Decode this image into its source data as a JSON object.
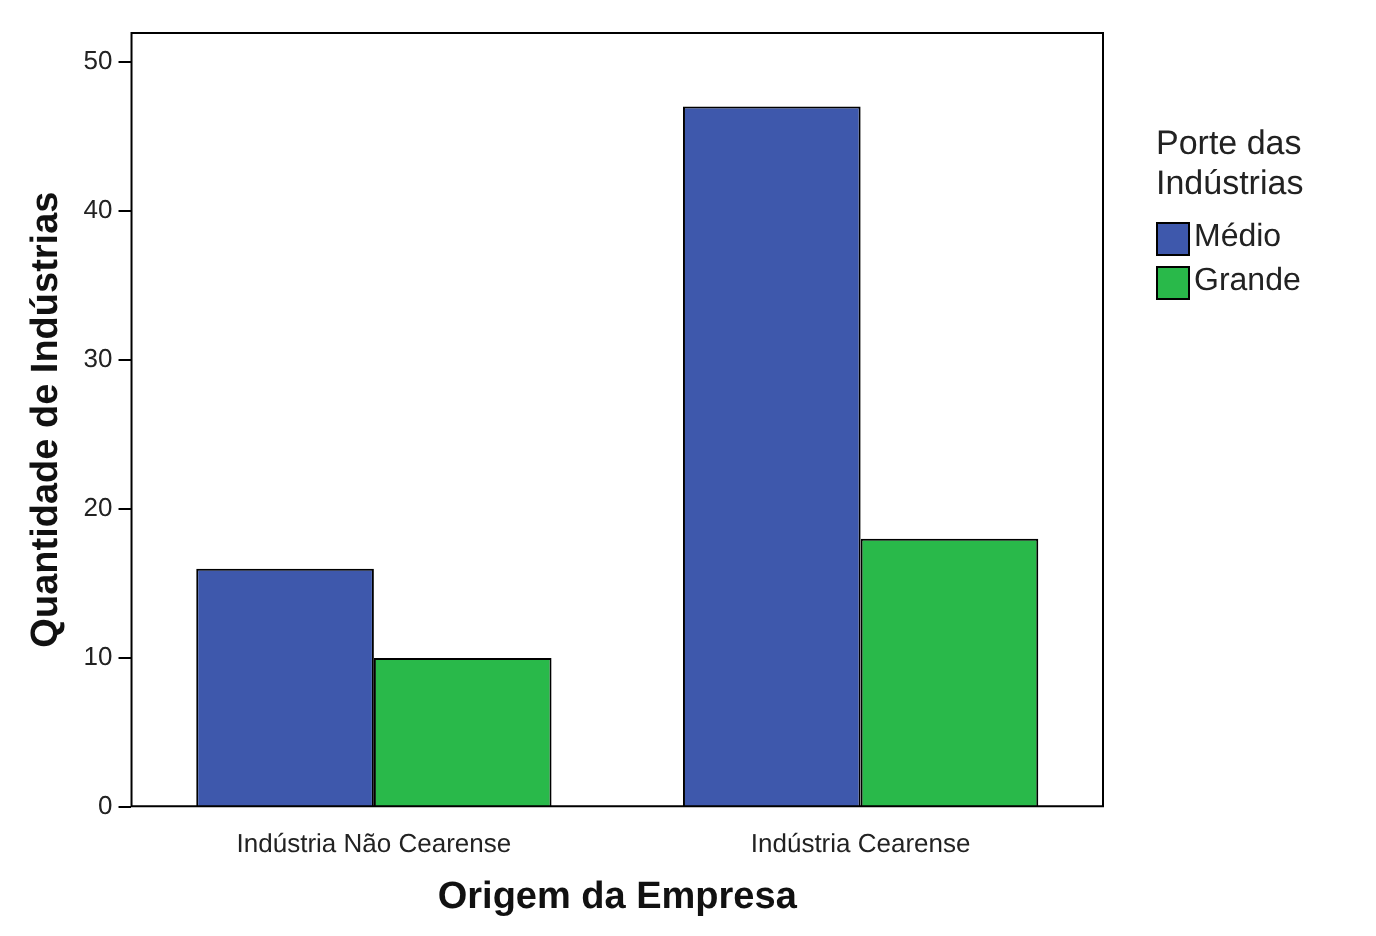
{
  "chart_data": {
    "type": "bar",
    "xlabel": "Origem da Empresa",
    "ylabel": "Quantidade de Indústrias",
    "legend_title": "Porte das Indústrias",
    "categories": [
      "Indústria Não Cearense",
      "Indústria Cearense"
    ],
    "series": [
      {
        "name": "Médio",
        "color": "#3e58ac",
        "values": [
          16,
          47
        ]
      },
      {
        "name": "Grande",
        "color": "#29b94a",
        "values": [
          10,
          18
        ]
      }
    ],
    "ylim": [
      0,
      52
    ],
    "yticks": [
      0,
      10,
      20,
      30,
      40,
      50
    ],
    "grid": false,
    "legend": "right"
  }
}
